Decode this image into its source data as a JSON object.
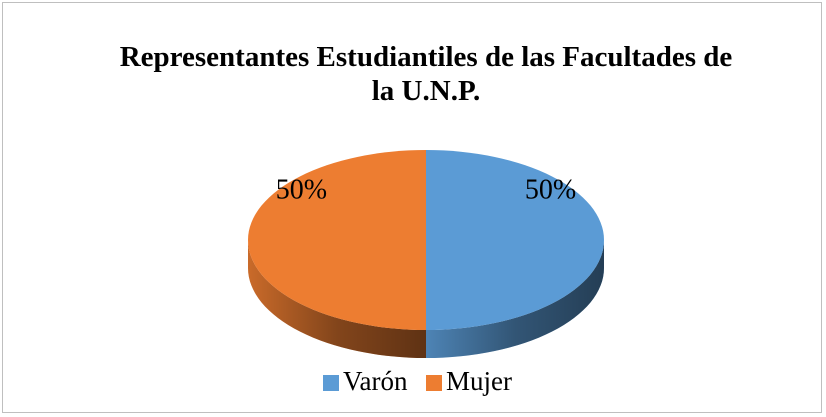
{
  "chart_data": {
    "type": "pie3d",
    "title": "Representantes Estudiantiles de las Facultades de la U.N.P.",
    "categories": [
      "Varón",
      "Mujer"
    ],
    "values": [
      50,
      50
    ],
    "value_labels": [
      "50%",
      "50%"
    ],
    "colors": [
      "#5b9bd5",
      "#ed7d31"
    ],
    "legend": "bottom"
  }
}
